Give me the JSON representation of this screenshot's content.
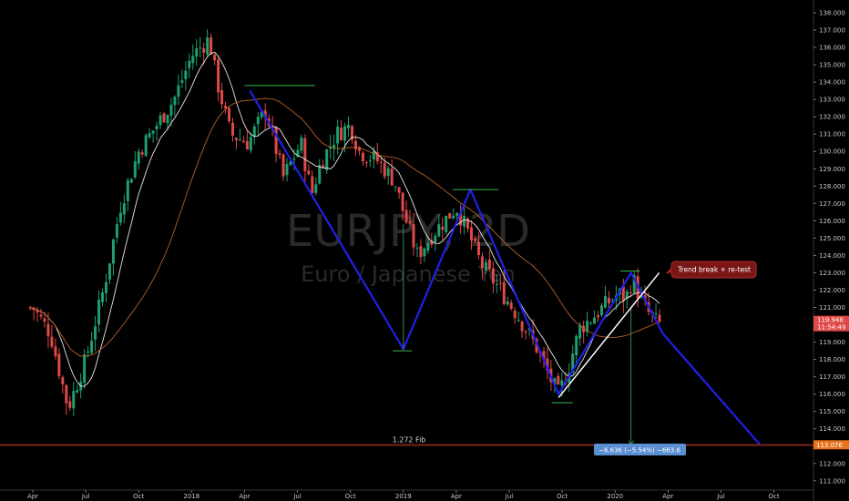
{
  "chart_data": {
    "type": "candlestick",
    "watermark": {
      "symbol": "EURJPY, 2D",
      "name": "Euro / Japanese Yen"
    },
    "y_ticks": [
      111,
      112,
      113,
      114,
      115,
      116,
      117,
      118,
      119,
      120,
      121,
      122,
      123,
      124,
      125,
      126,
      127,
      128,
      129,
      130,
      131,
      132,
      133,
      134,
      135,
      136,
      137,
      138
    ],
    "y_tick_labels": [
      "111.000",
      "112.000",
      "113.000",
      "114.000",
      "115.000",
      "116.000",
      "117.000",
      "118.000",
      "119.000",
      "120.000",
      "121.000",
      "122.000",
      "123.000",
      "124.000",
      "125.000",
      "126.000",
      "127.000",
      "128.000",
      "129.000",
      "130.000",
      "131.000",
      "132.000",
      "133.000",
      "134.000",
      "135.000",
      "136.000",
      "137.000",
      "138.000"
    ],
    "ylim": [
      110.25,
      138.6
    ],
    "x_ticks": [
      {
        "label": "Apr",
        "i": 0
      },
      {
        "label": "Jul",
        "i": 3
      },
      {
        "label": "Oct",
        "i": 6
      },
      {
        "label": "2018",
        "i": 9
      },
      {
        "label": "Apr",
        "i": 12
      },
      {
        "label": "Jul",
        "i": 15
      },
      {
        "label": "Oct",
        "i": 18
      },
      {
        "label": "2019",
        "i": 21
      },
      {
        "label": "Apr",
        "i": 24
      },
      {
        "label": "Jul",
        "i": 27
      },
      {
        "label": "Oct",
        "i": 30
      },
      {
        "label": "2020",
        "i": 33
      },
      {
        "label": "Apr",
        "i": 36
      },
      {
        "label": "Jul",
        "i": 39
      },
      {
        "label": "Oct",
        "i": 42
      }
    ],
    "x_months_span": [
      0,
      44.2
    ],
    "price_path": [
      [
        0,
        121.0
      ],
      [
        1,
        119.5
      ],
      [
        2,
        115.2
      ],
      [
        3,
        118.0
      ],
      [
        4,
        122.0
      ],
      [
        5,
        127.0
      ],
      [
        6,
        130.0
      ],
      [
        7,
        131.5
      ],
      [
        8,
        133.0
      ],
      [
        9,
        135.5
      ],
      [
        10,
        136.5
      ],
      [
        10.4,
        134.2
      ],
      [
        11.2,
        131.0
      ],
      [
        12.2,
        130.5
      ],
      [
        13.2,
        132.4
      ],
      [
        14.2,
        128.5
      ],
      [
        15.2,
        130.5
      ],
      [
        15.8,
        127.5
      ],
      [
        16.3,
        129.3
      ],
      [
        17.2,
        131.0
      ],
      [
        18.0,
        131.5
      ],
      [
        18.5,
        130.0
      ],
      [
        19.5,
        129.5
      ],
      [
        20.5,
        128.3
      ],
      [
        21.0,
        126.5
      ],
      [
        21.8,
        124.0
      ],
      [
        22.7,
        125.3
      ],
      [
        23.5,
        126.2
      ],
      [
        24.0,
        126.8
      ],
      [
        24.8,
        125.0
      ],
      [
        25.4,
        123.5
      ],
      [
        26.5,
        122.0
      ],
      [
        27.5,
        120.5
      ],
      [
        28.5,
        118.8
      ],
      [
        29.5,
        116.5
      ],
      [
        29.8,
        116.0
      ],
      [
        30.3,
        117.3
      ],
      [
        31.0,
        119.8
      ],
      [
        31.8,
        120.5
      ],
      [
        32.5,
        121.2
      ],
      [
        33.2,
        121.8
      ],
      [
        33.6,
        121.5
      ],
      [
        34.0,
        122.7
      ],
      [
        34.4,
        121.6
      ],
      [
        34.8,
        120.8
      ],
      [
        35.3,
        120.2
      ],
      [
        35.6,
        120.0
      ]
    ],
    "current_price": "119.948",
    "countdown": "11:54:49",
    "fib_level": {
      "label": "1.272 Fib",
      "value": 113.076,
      "tag": "113.076"
    },
    "measurement": {
      "label": "−6.636 (−5.54%) −663.6"
    },
    "annotation": {
      "label": "Trend break + re-test"
    },
    "zigzag": [
      [
        12.3,
        133.5
      ],
      [
        21.0,
        118.6
      ],
      [
        24.8,
        127.8
      ],
      [
        29.8,
        116.0
      ],
      [
        33.9,
        123.0
      ],
      [
        35.7,
        119.5
      ],
      [
        41.2,
        113.1
      ]
    ],
    "trend_line": [
      [
        29.8,
        115.8
      ],
      [
        35.5,
        123.0
      ]
    ],
    "horizontal_levels": [
      {
        "y": 133.8,
        "from": 12.0,
        "to": 16.0
      },
      {
        "y": 127.8,
        "from": 23.8,
        "to": 26.4
      },
      {
        "y": 118.5,
        "from": 20.4,
        "to": 21.5
      },
      {
        "y": 115.5,
        "from": 29.4,
        "to": 30.6
      },
      {
        "y": 123.1,
        "from": 33.3,
        "to": 34.4
      }
    ]
  }
}
